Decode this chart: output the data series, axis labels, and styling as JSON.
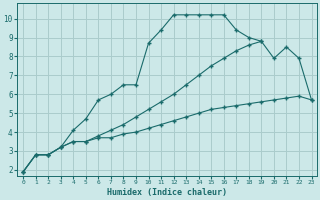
{
  "xlabel": "Humidex (Indice chaleur)",
  "background_color": "#cce8e8",
  "grid_color": "#aacccc",
  "line_color": "#1a6b6b",
  "xlim": [
    -0.5,
    23.4
  ],
  "ylim": [
    1.7,
    10.8
  ],
  "xticks": [
    0,
    1,
    2,
    3,
    4,
    5,
    6,
    7,
    8,
    9,
    10,
    11,
    12,
    13,
    14,
    15,
    16,
    17,
    18,
    19,
    20,
    21,
    22,
    23
  ],
  "yticks": [
    2,
    3,
    4,
    5,
    6,
    7,
    8,
    9,
    10
  ],
  "line1_x": [
    0,
    1,
    2,
    3,
    4,
    5,
    6,
    7,
    8,
    9,
    10,
    11,
    12,
    13,
    14,
    15,
    16,
    17,
    18,
    19,
    20,
    21,
    22,
    23
  ],
  "line1_y": [
    1.9,
    2.8,
    2.8,
    3.2,
    4.1,
    4.7,
    5.7,
    6.0,
    6.5,
    6.5,
    8.7,
    9.4,
    10.2,
    10.2,
    10.2,
    10.2,
    10.2,
    9.4,
    9.0,
    8.8,
    null,
    null,
    null,
    null
  ],
  "line2_x": [
    0,
    1,
    2,
    3,
    4,
    5,
    6,
    7,
    8,
    9,
    10,
    11,
    12,
    13,
    14,
    15,
    16,
    17,
    18,
    19,
    20,
    21,
    22,
    23
  ],
  "line2_y": [
    1.9,
    2.8,
    2.8,
    3.2,
    3.5,
    3.5,
    3.8,
    4.1,
    4.4,
    4.8,
    5.2,
    5.6,
    6.0,
    6.5,
    7.0,
    7.5,
    7.9,
    8.3,
    8.6,
    8.8,
    7.9,
    8.5,
    7.9,
    5.7
  ],
  "line3_x": [
    0,
    1,
    2,
    3,
    4,
    5,
    6,
    7,
    8,
    9,
    10,
    11,
    12,
    13,
    14,
    15,
    16,
    17,
    18,
    19,
    20,
    21,
    22,
    23
  ],
  "line3_y": [
    1.9,
    2.8,
    2.8,
    3.2,
    3.5,
    3.5,
    3.7,
    3.7,
    3.9,
    4.0,
    4.2,
    4.4,
    4.6,
    4.8,
    5.0,
    5.2,
    5.3,
    5.4,
    5.5,
    5.6,
    5.7,
    5.8,
    5.9,
    5.7
  ]
}
